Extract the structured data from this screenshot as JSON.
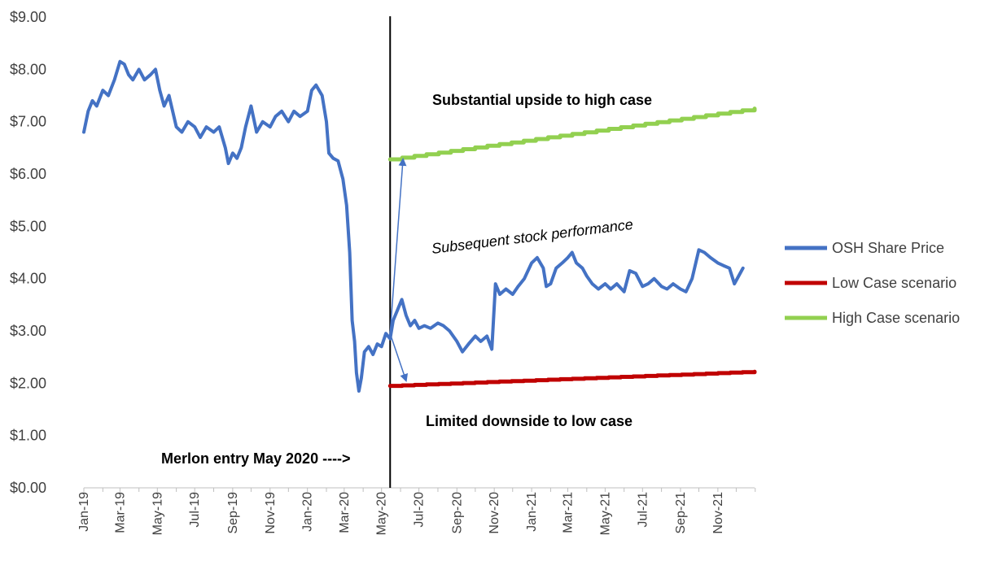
{
  "chart_data": {
    "type": "line",
    "title": "",
    "xlabel": "",
    "ylabel": "",
    "ylim": [
      0,
      9
    ],
    "y_tick_labels": [
      "$0.00",
      "$1.00",
      "$2.00",
      "$3.00",
      "$4.00",
      "$5.00",
      "$6.00",
      "$7.00",
      "$8.00",
      "$9.00"
    ],
    "x_tick_labels": [
      "Jan-19",
      "Mar-19",
      "May-19",
      "Jul-19",
      "Sep-19",
      "Nov-19",
      "Jan-20",
      "Mar-20",
      "May-20",
      "Jul-20",
      "Sep-20",
      "Nov-20",
      "Jan-21",
      "Mar-21",
      "May-21",
      "Jul-21",
      "Sep-21",
      "Nov-21"
    ],
    "x_range": [
      "2019-01-01",
      "2021-12-31"
    ],
    "grid": false,
    "legend_position": "right",
    "series": [
      {
        "name": "OSH Share Price",
        "color": "#4472C4",
        "points": [
          [
            "2019-01-01",
            6.8
          ],
          [
            "2019-01-08",
            7.2
          ],
          [
            "2019-01-15",
            7.4
          ],
          [
            "2019-01-22",
            7.3
          ],
          [
            "2019-02-01",
            7.6
          ],
          [
            "2019-02-10",
            7.5
          ],
          [
            "2019-02-20",
            7.8
          ],
          [
            "2019-03-01",
            8.15
          ],
          [
            "2019-03-08",
            8.1
          ],
          [
            "2019-03-15",
            7.9
          ],
          [
            "2019-03-22",
            7.8
          ],
          [
            "2019-04-01",
            8.0
          ],
          [
            "2019-04-10",
            7.8
          ],
          [
            "2019-04-20",
            7.9
          ],
          [
            "2019-04-28",
            8.0
          ],
          [
            "2019-05-05",
            7.6
          ],
          [
            "2019-05-12",
            7.3
          ],
          [
            "2019-05-20",
            7.5
          ],
          [
            "2019-06-01",
            6.9
          ],
          [
            "2019-06-10",
            6.8
          ],
          [
            "2019-06-20",
            7.0
          ],
          [
            "2019-07-01",
            6.9
          ],
          [
            "2019-07-10",
            6.7
          ],
          [
            "2019-07-20",
            6.9
          ],
          [
            "2019-08-01",
            6.8
          ],
          [
            "2019-08-10",
            6.9
          ],
          [
            "2019-08-20",
            6.5
          ],
          [
            "2019-08-25",
            6.2
          ],
          [
            "2019-09-01",
            6.4
          ],
          [
            "2019-09-08",
            6.3
          ],
          [
            "2019-09-15",
            6.5
          ],
          [
            "2019-09-22",
            6.9
          ],
          [
            "2019-10-01",
            7.3
          ],
          [
            "2019-10-10",
            6.8
          ],
          [
            "2019-10-20",
            7.0
          ],
          [
            "2019-11-01",
            6.9
          ],
          [
            "2019-11-10",
            7.1
          ],
          [
            "2019-11-20",
            7.2
          ],
          [
            "2019-12-01",
            7.0
          ],
          [
            "2019-12-10",
            7.2
          ],
          [
            "2019-12-20",
            7.1
          ],
          [
            "2020-01-01",
            7.2
          ],
          [
            "2020-01-08",
            7.6
          ],
          [
            "2020-01-15",
            7.7
          ],
          [
            "2020-01-25",
            7.5
          ],
          [
            "2020-02-01",
            7.0
          ],
          [
            "2020-02-05",
            6.4
          ],
          [
            "2020-02-12",
            6.3
          ],
          [
            "2020-02-20",
            6.25
          ],
          [
            "2020-02-28",
            5.9
          ],
          [
            "2020-03-05",
            5.4
          ],
          [
            "2020-03-10",
            4.5
          ],
          [
            "2020-03-14",
            3.2
          ],
          [
            "2020-03-18",
            2.8
          ],
          [
            "2020-03-21",
            2.2
          ],
          [
            "2020-03-25",
            1.85
          ],
          [
            "2020-03-29",
            2.1
          ],
          [
            "2020-04-03",
            2.6
          ],
          [
            "2020-04-10",
            2.7
          ],
          [
            "2020-04-17",
            2.55
          ],
          [
            "2020-04-24",
            2.75
          ],
          [
            "2020-05-01",
            2.7
          ],
          [
            "2020-05-08",
            2.95
          ],
          [
            "2020-05-15",
            2.85
          ],
          [
            "2020-05-20",
            3.2
          ],
          [
            "2020-05-27",
            3.4
          ],
          [
            "2020-06-03",
            3.6
          ],
          [
            "2020-06-10",
            3.3
          ],
          [
            "2020-06-17",
            3.1
          ],
          [
            "2020-06-24",
            3.2
          ],
          [
            "2020-07-01",
            3.05
          ],
          [
            "2020-07-10",
            3.1
          ],
          [
            "2020-07-20",
            3.05
          ],
          [
            "2020-08-01",
            3.15
          ],
          [
            "2020-08-10",
            3.1
          ],
          [
            "2020-08-20",
            3.0
          ],
          [
            "2020-09-01",
            2.8
          ],
          [
            "2020-09-10",
            2.6
          ],
          [
            "2020-09-20",
            2.75
          ],
          [
            "2020-10-01",
            2.9
          ],
          [
            "2020-10-10",
            2.8
          ],
          [
            "2020-10-20",
            2.9
          ],
          [
            "2020-10-28",
            2.65
          ],
          [
            "2020-11-03",
            3.9
          ],
          [
            "2020-11-10",
            3.7
          ],
          [
            "2020-11-20",
            3.8
          ],
          [
            "2020-12-01",
            3.7
          ],
          [
            "2020-12-10",
            3.85
          ],
          [
            "2020-12-20",
            4.0
          ],
          [
            "2021-01-01",
            4.3
          ],
          [
            "2021-01-10",
            4.4
          ],
          [
            "2021-01-20",
            4.2
          ],
          [
            "2021-01-25",
            3.85
          ],
          [
            "2021-02-01",
            3.9
          ],
          [
            "2021-02-10",
            4.2
          ],
          [
            "2021-02-20",
            4.3
          ],
          [
            "2021-03-01",
            4.4
          ],
          [
            "2021-03-08",
            4.5
          ],
          [
            "2021-03-15",
            4.3
          ],
          [
            "2021-03-25",
            4.2
          ],
          [
            "2021-04-01",
            4.05
          ],
          [
            "2021-04-10",
            3.9
          ],
          [
            "2021-04-20",
            3.8
          ],
          [
            "2021-05-01",
            3.9
          ],
          [
            "2021-05-10",
            3.8
          ],
          [
            "2021-05-20",
            3.9
          ],
          [
            "2021-06-01",
            3.75
          ],
          [
            "2021-06-10",
            4.15
          ],
          [
            "2021-06-20",
            4.1
          ],
          [
            "2021-07-01",
            3.85
          ],
          [
            "2021-07-10",
            3.9
          ],
          [
            "2021-07-20",
            4.0
          ],
          [
            "2021-08-01",
            3.85
          ],
          [
            "2021-08-10",
            3.8
          ],
          [
            "2021-08-20",
            3.9
          ],
          [
            "2021-09-01",
            3.8
          ],
          [
            "2021-09-10",
            3.75
          ],
          [
            "2021-09-20",
            4.0
          ],
          [
            "2021-10-01",
            4.55
          ],
          [
            "2021-10-10",
            4.5
          ],
          [
            "2021-10-20",
            4.4
          ],
          [
            "2021-11-01",
            4.3
          ],
          [
            "2021-11-10",
            4.25
          ],
          [
            "2021-11-20",
            4.2
          ],
          [
            "2021-11-28",
            3.9
          ],
          [
            "2021-12-05",
            4.05
          ],
          [
            "2021-12-12",
            4.2
          ]
        ]
      },
      {
        "name": "Low Case scenario",
        "color": "#C00000",
        "points": [
          [
            "2020-05-15",
            1.95
          ],
          [
            "2021-12-31",
            2.22
          ]
        ]
      },
      {
        "name": "High Case scenario",
        "color": "#92D050",
        "points": [
          [
            "2020-05-15",
            6.28
          ],
          [
            "2021-12-31",
            7.25
          ]
        ]
      }
    ],
    "entry_date": "2020-05-15",
    "arrows": [
      {
        "from": [
          "2020-05-15",
          2.95
        ],
        "to": [
          "2020-06-05",
          6.28
        ],
        "color": "#4472C4"
      },
      {
        "from": [
          "2020-05-15",
          2.95
        ],
        "to": [
          "2020-06-10",
          2.05
        ],
        "color": "#4472C4"
      }
    ],
    "annotations": {
      "upside": "Substantial upside to high case",
      "performance": "Subsequent stock performance",
      "downside": "Limited downside to low case",
      "entry": "Merlon entry May 2020 ---->"
    }
  }
}
